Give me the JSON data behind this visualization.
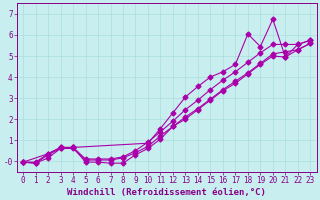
{
  "xlabel": "Windchill (Refroidissement éolien,°C)",
  "ylabel": "",
  "bg_color": "#c8eef0",
  "line_color": "#aa00aa",
  "grid_color": "#aadddd",
  "text_color": "#880088",
  "xlim": [
    -0.5,
    23.5
  ],
  "ylim": [
    -0.5,
    7.5
  ],
  "xticks": [
    0,
    1,
    2,
    3,
    4,
    5,
    6,
    7,
    8,
    9,
    10,
    11,
    12,
    13,
    14,
    15,
    16,
    17,
    18,
    19,
    20,
    21,
    22,
    23
  ],
  "yticks": [
    0,
    1,
    2,
    3,
    4,
    5,
    6,
    7
  ],
  "ytick_labels": [
    "-0",
    "1",
    "2",
    "3",
    "4",
    "5",
    "6",
    "7"
  ],
  "line1_x": [
    0,
    1,
    2,
    3,
    4,
    5,
    6,
    7,
    8,
    9,
    10,
    11,
    12,
    13,
    14,
    15,
    16,
    17,
    18,
    19,
    20,
    21,
    22,
    23
  ],
  "line1_y": [
    -0.05,
    -0.1,
    0.3,
    0.6,
    0.6,
    0.05,
    0.05,
    0.05,
    0.15,
    0.4,
    0.7,
    1.2,
    1.65,
    2.1,
    2.5,
    2.95,
    3.4,
    3.8,
    4.2,
    4.65,
    5.1,
    5.2,
    5.3,
    5.6
  ],
  "line2_x": [
    0,
    1,
    2,
    3,
    4,
    5,
    6,
    7,
    8,
    9,
    10,
    11,
    12,
    13,
    14,
    15,
    16,
    17,
    18,
    19,
    20,
    21,
    22,
    23
  ],
  "line2_y": [
    -0.05,
    -0.05,
    0.35,
    0.65,
    0.65,
    0.1,
    0.1,
    0.1,
    0.2,
    0.5,
    0.9,
    1.4,
    1.9,
    2.45,
    2.9,
    3.4,
    3.85,
    4.25,
    4.7,
    5.15,
    5.55,
    5.55,
    5.55,
    5.75
  ],
  "line3_x": [
    0,
    2,
    3,
    4,
    10,
    11,
    12,
    13,
    14,
    15,
    16,
    17,
    18,
    19,
    20,
    21,
    22,
    23
  ],
  "line3_y": [
    -0.05,
    0.35,
    0.65,
    0.65,
    0.85,
    1.55,
    2.3,
    3.05,
    3.55,
    4.0,
    4.25,
    4.6,
    6.05,
    5.45,
    6.75,
    4.95,
    5.55,
    5.75
  ],
  "line4_x": [
    0,
    1,
    2,
    3,
    4,
    5,
    6,
    7,
    8,
    9,
    10,
    11,
    12,
    13,
    14,
    15,
    16,
    17,
    18,
    19,
    20,
    21,
    22,
    23
  ],
  "line4_y": [
    -0.05,
    -0.1,
    0.15,
    0.6,
    0.65,
    -0.05,
    -0.05,
    -0.1,
    -0.1,
    0.3,
    0.6,
    1.05,
    1.65,
    2.0,
    2.45,
    2.9,
    3.35,
    3.7,
    4.15,
    4.6,
    5.0,
    4.95,
    5.3,
    5.6
  ],
  "font_size": 7,
  "tick_fontsize": 5.5,
  "xlabel_fontsize": 6.5,
  "lw": 0.8,
  "marker": "D",
  "markersize": 2.5
}
